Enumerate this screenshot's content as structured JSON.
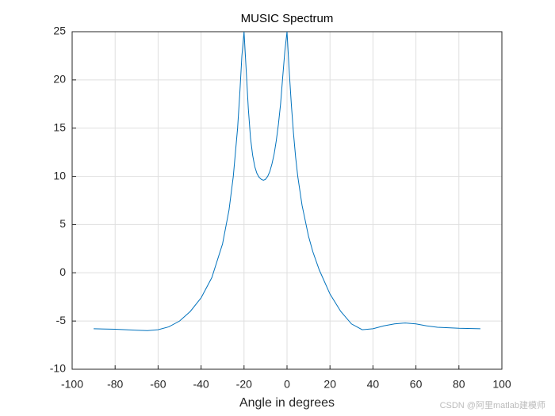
{
  "chart_data": {
    "type": "line",
    "title": "MUSIC Spectrum",
    "x_label": "Angle in degrees",
    "x": [
      -90,
      -80,
      -70,
      -65,
      -60,
      -55,
      -50,
      -45,
      -40,
      -35,
      -30,
      -27,
      -25,
      -23,
      -22,
      -21,
      -20,
      -19,
      -18,
      -17,
      -16,
      -15,
      -14,
      -13,
      -12,
      -11,
      -10,
      -9,
      -8,
      -7,
      -6,
      -5,
      -4,
      -3,
      -2,
      -1,
      0,
      1,
      2,
      3,
      4,
      5,
      7,
      10,
      12,
      15,
      20,
      25,
      30,
      35,
      40,
      45,
      50,
      55,
      60,
      65,
      70,
      80,
      90
    ],
    "values": [
      -5.8,
      -5.85,
      -5.95,
      -6.0,
      -5.9,
      -5.6,
      -5.0,
      -4.0,
      -2.6,
      -0.5,
      3.0,
      6.5,
      10,
      15,
      18.5,
      22.5,
      25,
      21,
      17,
      14,
      12.2,
      11,
      10.3,
      9.9,
      9.7,
      9.6,
      9.7,
      10,
      10.5,
      11.3,
      12.3,
      13.7,
      15.4,
      17.5,
      20.3,
      23,
      25,
      21,
      17.5,
      14.5,
      12,
      10,
      7,
      3.8,
      2.2,
      0.3,
      -2.2,
      -4.0,
      -5.3,
      -5.9,
      -5.8,
      -5.5,
      -5.3,
      -5.2,
      -5.3,
      -5.5,
      -5.65,
      -5.75,
      -5.8
    ],
    "color": "#0072bd",
    "xlim": [
      -100,
      100
    ],
    "xticks": [
      -100,
      -80,
      -60,
      -40,
      -20,
      0,
      20,
      40,
      60,
      80,
      100
    ],
    "ylim": [
      -10,
      25
    ],
    "yticks": [
      -10,
      -5,
      0,
      5,
      10,
      15,
      20,
      25
    ],
    "grid": true
  },
  "watermark": "CSDN @阿里matlab建模师"
}
